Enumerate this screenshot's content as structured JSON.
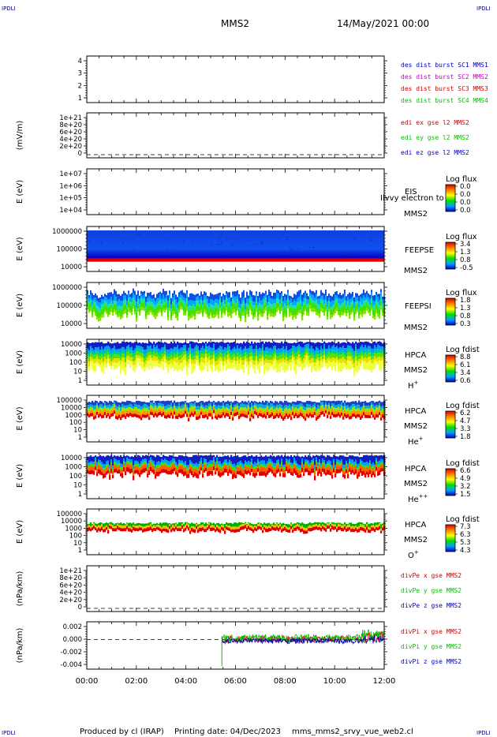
{
  "header": {
    "corner_label": "IPDLI",
    "title": "MMS2",
    "date": "14/May/2021 00:00"
  },
  "footer": {
    "produced_by": "Produced by cl (IRAP)",
    "printing_date": "Printing date: 04/Dec/2023",
    "file": "mms_mms2_srvy_vue_web2.cl"
  },
  "x_axis": {
    "ticks": [
      "00:00",
      "02:00",
      "04:00",
      "06:00",
      "08:00",
      "10:00",
      "12:00"
    ],
    "range_hours": [
      0,
      12
    ]
  },
  "colors": {
    "red": "#d00000",
    "green": "#00c000",
    "blue": "#0000c0",
    "magenta": "#c000c0",
    "dark_blue": "#00008b"
  },
  "chart_data": [
    {
      "type": "line",
      "ylabel": "",
      "ticks": [
        "4",
        "3",
        "2",
        "1"
      ],
      "ylim": [
        0.5,
        4.5
      ],
      "legend": [
        {
          "text": "des dist burst SC1 MMS1",
          "color": "#0000c0"
        },
        {
          "text": "des dist burst SC2 MMS2",
          "color": "#c000c0"
        },
        {
          "text": "des dist burst SC3 MMS3",
          "color": "#d00000"
        },
        {
          "text": "des dist burst SC4 MMS4",
          "color": "#00c000"
        }
      ],
      "series": []
    },
    {
      "type": "line",
      "ylabel": "(mV/m)",
      "ticks": [
        "1e+21",
        "8e+20",
        "6e+20",
        "4e+20",
        "2e+20",
        "0"
      ],
      "legend": [
        {
          "text": "edi ex gse l2 MMS2",
          "color": "#d00000"
        },
        {
          "text": "edi ey gse l2 MMS2",
          "color": "#00c000"
        },
        {
          "text": "edi ez gse l2 MMS2",
          "color": "#0000c0"
        }
      ],
      "zero_line": true,
      "series": []
    },
    {
      "type": "heatmap",
      "ylabel": "E (eV)",
      "ticks": [
        "1e+07",
        "1e+06",
        "1e+05",
        "1e+04"
      ],
      "instrument": [
        "EIS",
        "MMS2"
      ],
      "overlay_text": "Ilvvy electron to",
      "colorbar": {
        "title": "Log flux",
        "labels": [
          "0.0",
          "0.0",
          "0.0",
          "0.0"
        ]
      },
      "empty": true
    },
    {
      "type": "heatmap",
      "ylabel": "E (eV)",
      "ticks": [
        "1000000",
        "100000",
        "10000"
      ],
      "instrument": [
        "FEEPSE",
        "MMS2"
      ],
      "colorbar": {
        "title": "Log flux",
        "labels": [
          "3.4",
          "1.3",
          "0.8",
          "-0.5"
        ]
      },
      "coverage_hours": [
        0,
        12
      ]
    },
    {
      "type": "heatmap",
      "ylabel": "E (eV)",
      "ticks": [
        "1000000",
        "100000",
        "10000"
      ],
      "instrument": [
        "FEEPSI",
        "MMS2"
      ],
      "colorbar": {
        "title": "Log flux",
        "labels": [
          "1.8",
          "1.3",
          "0.8",
          "0.3"
        ]
      },
      "coverage_hours": [
        0,
        12
      ]
    },
    {
      "type": "heatmap",
      "ylabel": "E (eV)",
      "ticks": [
        "10000",
        "1000",
        "100",
        "10",
        "1"
      ],
      "instrument": [
        "HPCA",
        "MMS2"
      ],
      "species": "H",
      "species_sup": "+",
      "colorbar": {
        "title": "Log fdist",
        "labels": [
          "8.8",
          "6.1",
          "3.4",
          "0.6"
        ]
      },
      "coverage_hours": [
        0,
        12
      ]
    },
    {
      "type": "heatmap",
      "ylabel": "E (eV)",
      "ticks": [
        "100000",
        "10000",
        "1000",
        "100",
        "10",
        "1"
      ],
      "instrument": [
        "HPCA",
        "MMS2"
      ],
      "species": "He",
      "species_sup": "+",
      "colorbar": {
        "title": "Log fdist",
        "labels": [
          "6.2",
          "4.7",
          "3.3",
          "1.8"
        ]
      },
      "coverage_hours": [
        0,
        12
      ]
    },
    {
      "type": "heatmap",
      "ylabel": "E (eV)",
      "ticks": [
        "10000",
        "1000",
        "100",
        "10",
        "1"
      ],
      "instrument": [
        "HPCA",
        "MMS2"
      ],
      "species": "He",
      "species_sup": "++",
      "colorbar": {
        "title": "Log fdist",
        "labels": [
          "6.6",
          "4.9",
          "3.2",
          "1.5"
        ]
      },
      "coverage_hours": [
        0,
        12
      ]
    },
    {
      "type": "heatmap",
      "ylabel": "E (eV)",
      "ticks": [
        "100000",
        "10000",
        "1000",
        "100",
        "10",
        "1"
      ],
      "instrument": [
        "HPCA",
        "MMS2"
      ],
      "species": "O",
      "species_sup": "+",
      "colorbar": {
        "title": "Log fdist",
        "labels": [
          "7.3",
          "6.3",
          "5.3",
          "4.3"
        ]
      },
      "coverage_hours": [
        0,
        12
      ]
    },
    {
      "type": "line",
      "ylabel": "(nPa/km)",
      "ticks": [
        "1e+21",
        "8e+20",
        "6e+20",
        "4e+20",
        "2e+20",
        "0"
      ],
      "legend": [
        {
          "text": "divPe x gse MMS2",
          "color": "#d00000"
        },
        {
          "text": "divPe y gse MMS2",
          "color": "#00c000"
        },
        {
          "text": "divPe z gse MMS2",
          "color": "#0000c0"
        }
      ],
      "zero_line": true,
      "series": []
    },
    {
      "type": "line",
      "ylabel": "(nPa/km)",
      "ticks": [
        "0.002",
        "0.000",
        "-0.002",
        "-0.004"
      ],
      "ylim": [
        -0.005,
        0.003
      ],
      "legend": [
        {
          "text": "divPi x gse MMS2",
          "color": "#d00000"
        },
        {
          "text": "divPi y gse MMS2",
          "color": "#00c000"
        },
        {
          "text": "divPi z gse MMS2",
          "color": "#0000c0"
        }
      ],
      "zero_line": true,
      "data_start_hour": 5.45,
      "series": [
        {
          "color": "#d00000",
          "typical_range": [
            -0.0005,
            0.0007
          ]
        },
        {
          "color": "#00c000",
          "typical_range": [
            -0.0004,
            0.0009
          ]
        },
        {
          "color": "#0000c0",
          "typical_range": [
            -0.0007,
            0.0002
          ]
        }
      ]
    }
  ]
}
